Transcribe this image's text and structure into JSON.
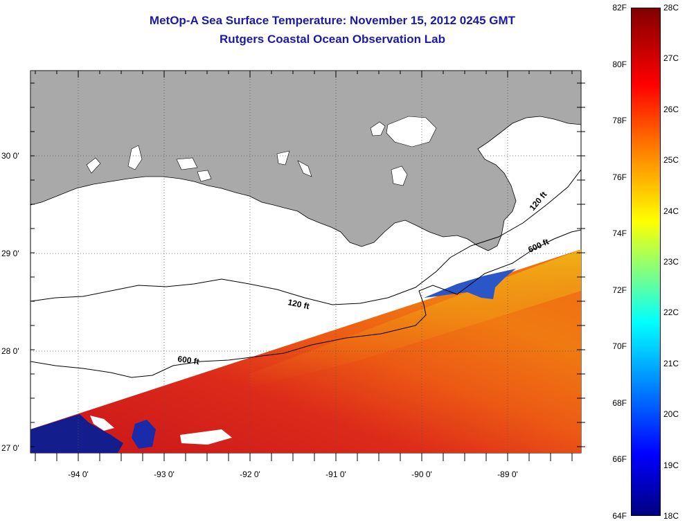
{
  "title": "MetOp-A Sea Surface Temperature:  November 15, 2012 0245 GMT",
  "subtitle": "Rutgers Coastal Ocean Observation Lab",
  "lon_ticks": [
    "-94 0'",
    "-93 0'",
    "-92 0'",
    "-91 0'",
    "-90 0'",
    "-89 0'"
  ],
  "lat_ticks": [
    "30 0'",
    "29 0'",
    "28 0'",
    "27 0'"
  ],
  "contour_labels": [
    "120 ft",
    "120 ft",
    "600 ft",
    "600 ft"
  ],
  "colorbar": {
    "fahrenheit": [
      "82F",
      "80F",
      "78F",
      "76F",
      "74F",
      "72F",
      "70F",
      "68F",
      "66F",
      "64F"
    ],
    "celsius": [
      "28C",
      "27C",
      "26C",
      "25C",
      "24C",
      "23C",
      "22C",
      "21C",
      "20C",
      "19C",
      "18C"
    ]
  },
  "colors": {
    "land": "#a9a9a9",
    "title": "#1a1aa6",
    "sst_warm": "#f06a10",
    "sst_hot": "#d8201c",
    "sst_cool": "#1b2fa8",
    "sst_yellow": "#e8d818"
  }
}
